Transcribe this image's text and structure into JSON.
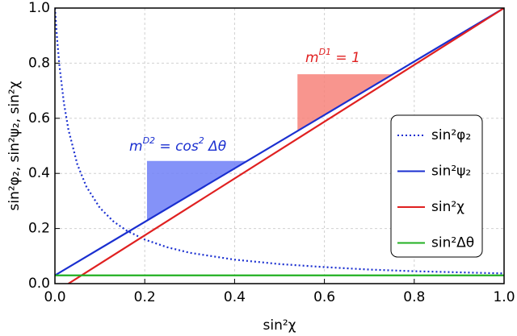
{
  "chart_data": {
    "type": "line",
    "xlabel": "sin²χ",
    "ylabel": "sin²φ₂, sin²ψ₂, sin²χ",
    "xlim": [
      0,
      1
    ],
    "ylim": [
      0,
      1
    ],
    "xticks": [
      {
        "value": 0,
        "label": "0.0"
      },
      {
        "value": 0.2,
        "label": "0.2"
      },
      {
        "value": 0.4,
        "label": "0.4"
      },
      {
        "value": 0.6,
        "label": "0.6"
      },
      {
        "value": 0.8,
        "label": "0.8"
      },
      {
        "value": 1,
        "label": "1.0"
      }
    ],
    "yticks": [
      {
        "value": 0,
        "label": "0.0"
      },
      {
        "value": 0.2,
        "label": "0.2"
      },
      {
        "value": 0.4,
        "label": "0.4"
      },
      {
        "value": 0.6,
        "label": "0.6"
      },
      {
        "value": 0.8,
        "label": "0.8"
      },
      {
        "value": 1,
        "label": "1.0"
      }
    ],
    "grid": true,
    "legend": "center right",
    "series": [
      {
        "name": "sin²φ₂",
        "color": "#1a2fd0",
        "linestyle": "dotted",
        "x": [
          0,
          0.005,
          0.01,
          0.02,
          0.03,
          0.05,
          0.07,
          0.1,
          0.13,
          0.16,
          0.2,
          0.25,
          0.3,
          0.4,
          0.5,
          0.6,
          0.7,
          0.8,
          0.9,
          1.0
        ],
        "values": [
          1.0,
          0.884,
          0.792,
          0.655,
          0.559,
          0.432,
          0.352,
          0.275,
          0.226,
          0.192,
          0.16,
          0.132,
          0.112,
          0.087,
          0.071,
          0.06,
          0.051,
          0.045,
          0.041,
          0.037
        ]
      },
      {
        "name": "sin²ψ₂",
        "color": "#1a2fd0",
        "linestyle": "solid",
        "x": [
          0,
          1
        ],
        "values": [
          0.03,
          1
        ]
      },
      {
        "name": "sin²χ",
        "color": "#e02020",
        "linestyle": "solid",
        "x": [
          0.03,
          1
        ],
        "values": [
          0,
          1
        ]
      },
      {
        "name": "sin²Δθ",
        "color": "#22b022",
        "linestyle": "solid",
        "x": [
          0,
          1
        ],
        "values": [
          0.03,
          0.03
        ]
      }
    ],
    "shaded_regions": [
      {
        "color": "#6f7ff7",
        "x": [
          0.205,
          0.205,
          0.425
        ],
        "y": [
          0.23,
          0.445,
          0.445
        ]
      },
      {
        "color": "#f7837a",
        "x": [
          0.54,
          0.54,
          0.755
        ],
        "y": [
          0.555,
          0.76,
          0.76
        ]
      }
    ],
    "annotations": [
      {
        "color": "#1a2fd0",
        "parts": [
          "m",
          {
            "sup": "D2"
          },
          " = cos",
          {
            "sup": "2"
          },
          " Δθ"
        ]
      },
      {
        "color": "#e02020",
        "parts": [
          "m",
          {
            "sup": "D1"
          },
          " = 1"
        ]
      }
    ]
  }
}
